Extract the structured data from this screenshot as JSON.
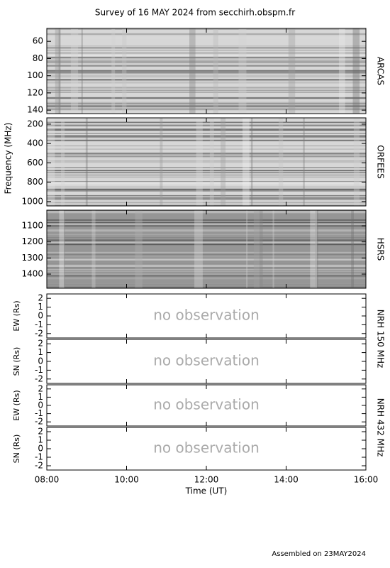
{
  "title": "Survey of 16 MAY 2024 from secchirh.obspm.fr",
  "footer": "Assembled on 23MAY2024",
  "chart_data": [
    {
      "type": "spectrogram",
      "side_label": "ARCAS",
      "ylim": [
        45,
        144
      ],
      "y_inverted": true,
      "yticks": [
        60,
        80,
        100,
        120,
        140
      ]
    },
    {
      "type": "spectrogram",
      "side_label": "ORFEES",
      "ylabel": "Frequency (MHz)",
      "ylim": [
        135,
        1045
      ],
      "y_inverted": true,
      "yticks": [
        200,
        400,
        600,
        800,
        1000
      ]
    },
    {
      "type": "spectrogram",
      "side_label": "HSRS",
      "ylim": [
        1003,
        1488
      ],
      "y_inverted": true,
      "yticks": [
        1100,
        1200,
        1300,
        1400
      ]
    },
    {
      "type": "position",
      "ylabel": "EW (Rs)",
      "side_label": "NRH 150 MHz",
      "annotation": "no observation",
      "ylim": [
        -2.5,
        2.5
      ],
      "yticks": [
        -2,
        -1,
        0,
        1,
        2
      ]
    },
    {
      "type": "position",
      "ylabel": "SN (Rs)",
      "annotation": "no observation",
      "ylim": [
        -2.5,
        2.5
      ],
      "yticks": [
        -2,
        -1,
        0,
        1,
        2
      ]
    },
    {
      "type": "position",
      "ylabel": "EW (Rs)",
      "side_label": "NRH 432 MHz",
      "annotation": "no observation",
      "ylim": [
        -2.5,
        2.5
      ],
      "yticks": [
        -2,
        -1,
        0,
        1,
        2
      ]
    },
    {
      "type": "position",
      "ylabel": "SN (Rs)",
      "annotation": "no observation",
      "ylim": [
        -2.5,
        2.5
      ],
      "yticks": [
        -2,
        -1,
        0,
        1,
        2
      ],
      "xlabel": "Time (UT)",
      "xlim": [
        8,
        16
      ],
      "xticks": [
        {
          "value": 8,
          "label": "08:00"
        },
        {
          "value": 10,
          "label": "10:00"
        },
        {
          "value": 12,
          "label": "12:00"
        },
        {
          "value": 14,
          "label": "14:00"
        },
        {
          "value": 16,
          "label": "16:00"
        }
      ]
    }
  ]
}
